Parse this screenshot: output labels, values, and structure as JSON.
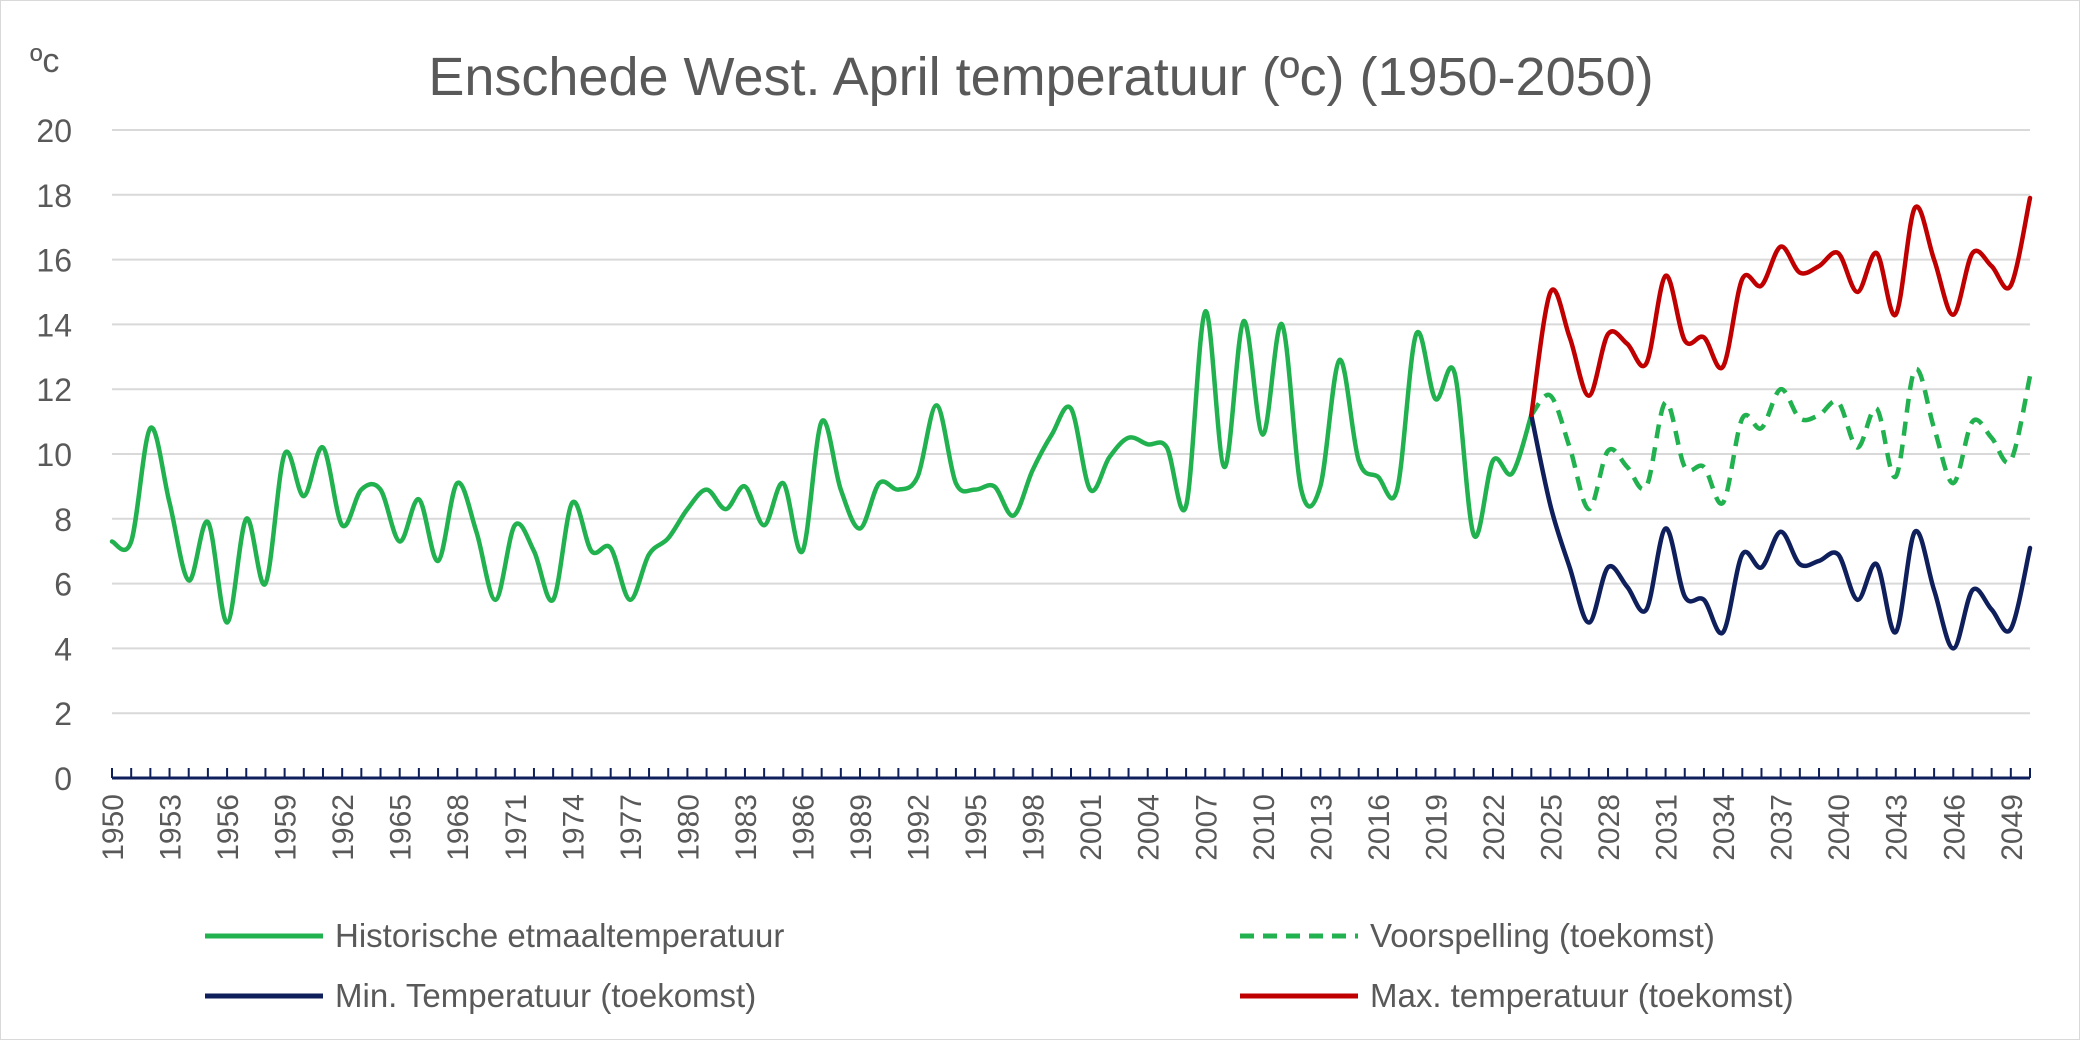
{
  "chart_data": {
    "type": "line",
    "title": "Enschede West. April temperatuur (ºc) (1950-2050)",
    "unit_label": "ºc",
    "ylim": [
      0,
      20
    ],
    "yticks": [
      0,
      2,
      4,
      6,
      8,
      10,
      12,
      14,
      16,
      18,
      20
    ],
    "xlim": [
      1950,
      2050
    ],
    "xtick_labels": [
      "1950",
      "1953",
      "1956",
      "1959",
      "1962",
      "1965",
      "1968",
      "1971",
      "1974",
      "1977",
      "1980",
      "1983",
      "1986",
      "1989",
      "1992",
      "1995",
      "1998",
      "2001",
      "2004",
      "2007",
      "2010",
      "2013",
      "2016",
      "2019",
      "2022",
      "2025",
      "2028",
      "2031",
      "2034",
      "2037",
      "2040",
      "2043",
      "2046",
      "2049"
    ],
    "grid": true,
    "legend_position": "bottom",
    "series": [
      {
        "name": "Historische etmaaltemperatuur",
        "color": "#21b14f",
        "style": "solid",
        "x": [
          1950,
          1951,
          1952,
          1953,
          1954,
          1955,
          1956,
          1957,
          1958,
          1959,
          1960,
          1961,
          1962,
          1963,
          1964,
          1965,
          1966,
          1967,
          1968,
          1969,
          1970,
          1971,
          1972,
          1973,
          1974,
          1975,
          1976,
          1977,
          1978,
          1979,
          1980,
          1981,
          1982,
          1983,
          1984,
          1985,
          1986,
          1987,
          1988,
          1989,
          1990,
          1991,
          1992,
          1993,
          1994,
          1995,
          1996,
          1997,
          1998,
          1999,
          2000,
          2001,
          2002,
          2003,
          2004,
          2005,
          2006,
          2007,
          2008,
          2009,
          2010,
          2011,
          2012,
          2013,
          2014,
          2015,
          2016,
          2017,
          2018,
          2019,
          2020,
          2021,
          2022,
          2023,
          2024
        ],
        "values": [
          7.3,
          7.3,
          10.8,
          8.5,
          6.1,
          7.9,
          4.8,
          8.0,
          6.0,
          10.0,
          8.7,
          10.2,
          7.8,
          8.9,
          8.9,
          7.3,
          8.6,
          6.7,
          9.1,
          7.6,
          5.5,
          7.8,
          7.0,
          5.5,
          8.5,
          7.0,
          7.1,
          5.5,
          6.9,
          7.4,
          8.3,
          8.9,
          8.3,
          9.0,
          7.8,
          9.1,
          7.0,
          11.0,
          8.9,
          7.7,
          9.1,
          8.9,
          9.3,
          11.5,
          9.1,
          8.9,
          9.0,
          8.1,
          9.5,
          10.6,
          11.4,
          8.9,
          9.9,
          10.5,
          10.3,
          10.2,
          8.4,
          14.4,
          9.6,
          14.1,
          10.6,
          14.0,
          8.9,
          9.0,
          12.9,
          9.8,
          9.3,
          8.9,
          13.7,
          11.7,
          12.5,
          7.5,
          9.8,
          9.4,
          11.2
        ]
      },
      {
        "name": "Voorspelling (toekomst)",
        "color": "#21b14f",
        "style": "dashed",
        "x": [
          2024,
          2025,
          2026,
          2027,
          2028,
          2029,
          2030,
          2031,
          2032,
          2033,
          2034,
          2035,
          2036,
          2037,
          2038,
          2039,
          2040,
          2041,
          2042,
          2043,
          2044,
          2045,
          2046,
          2047,
          2048,
          2049,
          2050
        ],
        "values": [
          11.2,
          11.8,
          10.2,
          8.3,
          10.1,
          9.6,
          9.0,
          11.6,
          9.6,
          9.6,
          8.5,
          11.1,
          10.8,
          12.0,
          11.1,
          11.2,
          11.6,
          10.2,
          11.4,
          9.3,
          12.6,
          10.8,
          9.1,
          11.0,
          10.5,
          9.8,
          12.4
        ]
      },
      {
        "name": "Min. Temperatuur (toekomst)",
        "color": "#0f1f5c",
        "style": "solid",
        "x": [
          2024,
          2025,
          2026,
          2027,
          2028,
          2029,
          2030,
          2031,
          2032,
          2033,
          2034,
          2035,
          2036,
          2037,
          2038,
          2039,
          2040,
          2041,
          2042,
          2043,
          2044,
          2045,
          2046,
          2047,
          2048,
          2049,
          2050
        ],
        "values": [
          11.2,
          8.4,
          6.5,
          4.8,
          6.5,
          5.9,
          5.2,
          7.7,
          5.6,
          5.5,
          4.5,
          6.9,
          6.5,
          7.6,
          6.6,
          6.7,
          6.9,
          5.5,
          6.6,
          4.5,
          7.6,
          5.8,
          4.0,
          5.8,
          5.2,
          4.6,
          7.1
        ]
      },
      {
        "name": "Max. temperatuur (toekomst)",
        "color": "#c00000",
        "style": "solid",
        "x": [
          2024,
          2025,
          2026,
          2027,
          2028,
          2029,
          2030,
          2031,
          2032,
          2033,
          2034,
          2035,
          2036,
          2037,
          2038,
          2039,
          2040,
          2041,
          2042,
          2043,
          2044,
          2045,
          2046,
          2047,
          2048,
          2049,
          2050
        ],
        "values": [
          11.2,
          15.0,
          13.6,
          11.8,
          13.7,
          13.4,
          12.8,
          15.5,
          13.5,
          13.6,
          12.7,
          15.4,
          15.2,
          16.4,
          15.6,
          15.8,
          16.2,
          15.0,
          16.2,
          14.3,
          17.6,
          16.0,
          14.3,
          16.2,
          15.8,
          15.2,
          17.9
        ]
      }
    ]
  }
}
